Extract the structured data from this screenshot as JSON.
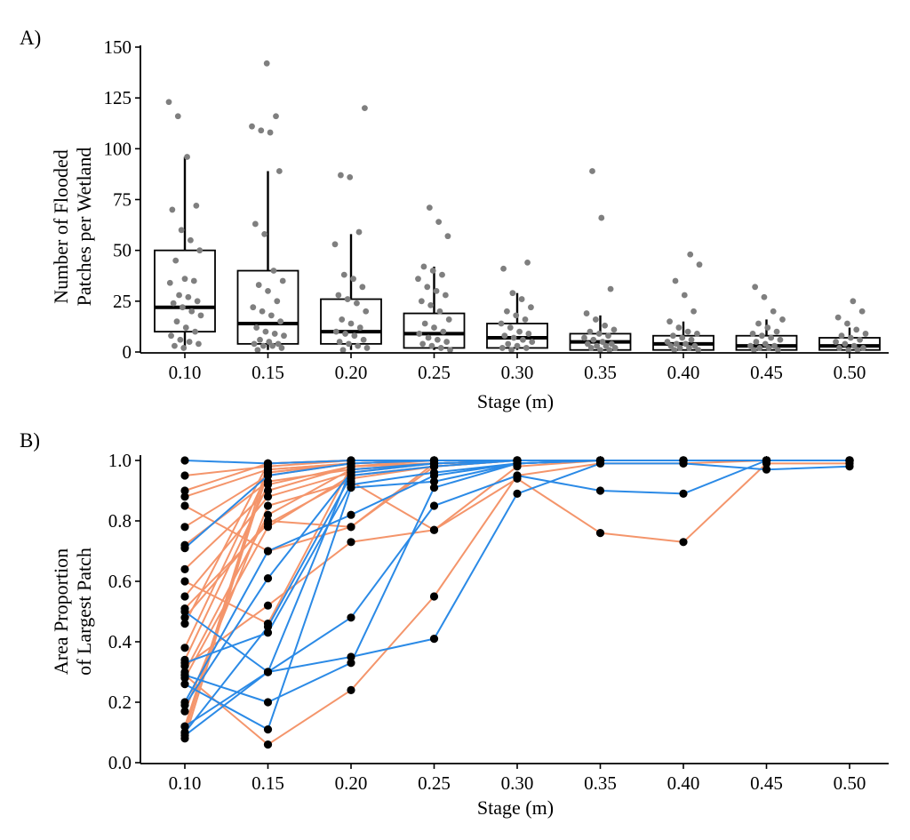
{
  "chart_data": [
    {
      "panel_label": "A)",
      "type": "box",
      "title": "",
      "xlabel": "Stage (m)",
      "ylabel_lines": [
        "Number of Flooded",
        "Patches per Wetland"
      ],
      "categories": [
        "0.10",
        "0.15",
        "0.20",
        "0.25",
        "0.30",
        "0.35",
        "0.40",
        "0.45",
        "0.50"
      ],
      "ylim": [
        0,
        150
      ],
      "yticks": [
        0,
        25,
        50,
        75,
        100,
        125,
        150
      ],
      "ytick_labels": [
        "0",
        "25",
        "50",
        "75",
        "100",
        "125",
        "150"
      ],
      "boxes": [
        {
          "q1": 10,
          "median": 22,
          "q3": 50,
          "whisker_low": 1,
          "whisker_high": 96
        },
        {
          "q1": 4,
          "median": 14,
          "q3": 40,
          "whisker_low": 1,
          "whisker_high": 89
        },
        {
          "q1": 4,
          "median": 10,
          "q3": 26,
          "whisker_low": 1,
          "whisker_high": 58
        },
        {
          "q1": 2,
          "median": 9,
          "q3": 19,
          "whisker_low": 1,
          "whisker_high": 42
        },
        {
          "q1": 2,
          "median": 7,
          "q3": 14,
          "whisker_low": 1,
          "whisker_high": 29
        },
        {
          "q1": 1,
          "median": 5,
          "q3": 9,
          "whisker_low": 1,
          "whisker_high": 18
        },
        {
          "q1": 1,
          "median": 4,
          "q3": 8,
          "whisker_low": 1,
          "whisker_high": 15
        },
        {
          "q1": 1,
          "median": 3,
          "q3": 8,
          "whisker_low": 1,
          "whisker_high": 16
        },
        {
          "q1": 1,
          "median": 3,
          "q3": 7,
          "whisker_low": 1,
          "whisker_high": 12
        }
      ],
      "points": [
        [
          123,
          116,
          96,
          72,
          70,
          60,
          55,
          50,
          45,
          36,
          35,
          34,
          28,
          27,
          25,
          24,
          22,
          20,
          18,
          15,
          12,
          10,
          8,
          6,
          5,
          4,
          3,
          2
        ],
        [
          142,
          116,
          111,
          109,
          108,
          89,
          63,
          58,
          40,
          35,
          33,
          30,
          25,
          22,
          20,
          18,
          15,
          12,
          10,
          9,
          8,
          6,
          5,
          4,
          4,
          3,
          3,
          2,
          1
        ],
        [
          120,
          87,
          86,
          59,
          53,
          38,
          36,
          32,
          28,
          26,
          24,
          20,
          16,
          14,
          12,
          10,
          9,
          8,
          6,
          5,
          4,
          3,
          2,
          1
        ],
        [
          71,
          64,
          57,
          42,
          40,
          38,
          36,
          32,
          30,
          28,
          25,
          23,
          20,
          16,
          14,
          12,
          10,
          9,
          7,
          6,
          5,
          4,
          3,
          2,
          1
        ],
        [
          44,
          41,
          29,
          26,
          22,
          20,
          18,
          16,
          14,
          12,
          10,
          9,
          8,
          7,
          6,
          5,
          4,
          3,
          2,
          2,
          1
        ],
        [
          89,
          66,
          31,
          19,
          16,
          13,
          11,
          10,
          9,
          8,
          7,
          6,
          5,
          4,
          4,
          3,
          3,
          2,
          2,
          1,
          1
        ],
        [
          48,
          43,
          35,
          28,
          20,
          15,
          12,
          10,
          9,
          8,
          7,
          6,
          5,
          4,
          4,
          3,
          3,
          2,
          2,
          1,
          1
        ],
        [
          32,
          27,
          20,
          16,
          14,
          12,
          10,
          9,
          8,
          7,
          6,
          5,
          4,
          3,
          3,
          2,
          2,
          1,
          1
        ],
        [
          25,
          20,
          17,
          14,
          11,
          9,
          8,
          7,
          6,
          5,
          4,
          3,
          2,
          2,
          1,
          1
        ]
      ]
    },
    {
      "panel_label": "B)",
      "type": "line",
      "title": "",
      "xlabel": "Stage (m)",
      "ylabel_lines": [
        "Area Proportion",
        "of Largest Patch"
      ],
      "categories": [
        "0.10",
        "0.15",
        "0.20",
        "0.25",
        "0.30",
        "0.35",
        "0.40",
        "0.45",
        "0.50"
      ],
      "ylim": [
        0,
        1
      ],
      "yticks": [
        0,
        0.2,
        0.4,
        0.6,
        0.8,
        1.0
      ],
      "ytick_labels": [
        "0.0",
        "0.2",
        "0.4",
        "0.6",
        "0.8",
        "1.0"
      ],
      "colors": {
        "orange": "#f4956b",
        "blue": "#2b8ae6",
        "point": "#000000"
      },
      "series": [
        {
          "color": "orange",
          "values": [
            0.29,
            0.06,
            0.24,
            0.55,
            0.95,
            0.99,
            0.99,
            1.0,
            1.0
          ]
        },
        {
          "color": "orange",
          "values": [
            0.32,
            0.52,
            0.73,
            0.77,
            0.94,
            0.76,
            0.73,
            0.99,
            0.99
          ]
        },
        {
          "color": "orange",
          "values": [
            0.6,
            0.46,
            0.98,
            0.99,
            1.0,
            1.0,
            1.0,
            1.0,
            1.0
          ]
        },
        {
          "color": "orange",
          "values": [
            0.85,
            0.7,
            0.78,
            0.99,
            1.0,
            1.0,
            1.0,
            1.0,
            1.0
          ]
        },
        {
          "color": "orange",
          "values": [
            0.12,
            0.96,
            0.99,
            1.0,
            1.0,
            1.0,
            1.0,
            1.0,
            1.0
          ]
        },
        {
          "color": "orange",
          "values": [
            0.9,
            0.99,
            1.0,
            1.0,
            1.0,
            1.0,
            1.0,
            1.0,
            1.0
          ]
        },
        {
          "color": "orange",
          "values": [
            0.95,
            0.98,
            1.0,
            1.0,
            1.0,
            1.0,
            1.0,
            1.0,
            1.0
          ]
        },
        {
          "color": "orange",
          "values": [
            0.88,
            0.97,
            0.99,
            1.0,
            1.0,
            1.0,
            1.0,
            1.0,
            1.0
          ]
        },
        {
          "color": "orange",
          "values": [
            0.78,
            0.95,
            0.99,
            1.0,
            1.0,
            1.0,
            1.0,
            1.0,
            1.0
          ]
        },
        {
          "color": "orange",
          "values": [
            0.72,
            0.93,
            0.97,
            0.99,
            1.0,
            1.0,
            1.0,
            1.0,
            1.0
          ]
        },
        {
          "color": "orange",
          "values": [
            0.64,
            0.9,
            0.98,
            1.0,
            1.0,
            1.0,
            1.0,
            1.0,
            1.0
          ]
        },
        {
          "color": "orange",
          "values": [
            0.55,
            0.88,
            0.96,
            0.99,
            1.0,
            1.0,
            1.0,
            1.0,
            1.0
          ]
        },
        {
          "color": "orange",
          "values": [
            0.51,
            0.79,
            0.94,
            0.98,
            1.0,
            1.0,
            1.0,
            1.0,
            1.0
          ]
        },
        {
          "color": "orange",
          "values": [
            0.48,
            0.8,
            0.78,
            0.98,
            1.0,
            1.0,
            1.0,
            1.0,
            1.0
          ]
        },
        {
          "color": "orange",
          "values": [
            0.46,
            0.99,
            1.0,
            1.0,
            1.0,
            1.0,
            1.0,
            1.0,
            1.0
          ]
        },
        {
          "color": "orange",
          "values": [
            0.38,
            0.96,
            0.99,
            1.0,
            1.0,
            1.0,
            1.0,
            1.0,
            1.0
          ]
        },
        {
          "color": "orange",
          "values": [
            0.34,
            0.92,
            0.98,
            0.99,
            1.0,
            1.0,
            1.0,
            1.0,
            1.0
          ]
        },
        {
          "color": "orange",
          "values": [
            0.3,
            0.82,
            0.97,
            0.99,
            1.0,
            1.0,
            1.0,
            1.0,
            1.0
          ]
        },
        {
          "color": "orange",
          "values": [
            0.28,
            0.78,
            0.95,
            0.98,
            1.0,
            1.0,
            1.0,
            1.0,
            1.0
          ]
        },
        {
          "color": "orange",
          "values": [
            0.08,
            0.97,
            0.99,
            1.0,
            1.0,
            1.0,
            1.0,
            1.0,
            1.0
          ]
        },
        {
          "color": "orange",
          "values": [
            0.1,
            0.99,
            1.0,
            1.0,
            1.0,
            1.0,
            1.0,
            1.0,
            1.0
          ]
        },
        {
          "color": "orange",
          "values": [
            0.17,
            0.85,
            0.93,
            0.77,
            0.98,
            1.0,
            1.0,
            1.0,
            1.0
          ]
        },
        {
          "color": "blue",
          "values": [
            0.09,
            0.3,
            0.35,
            0.41,
            0.89,
            0.99,
            0.99,
            0.97,
            0.98
          ]
        },
        {
          "color": "blue",
          "values": [
            0.12,
            0.3,
            0.48,
            0.85,
            0.95,
            0.9,
            0.89,
            1.0,
            1.0
          ]
        },
        {
          "color": "blue",
          "values": [
            0.29,
            0.2,
            0.33,
            0.91,
            0.99,
            1.0,
            1.0,
            1.0,
            1.0
          ]
        },
        {
          "color": "blue",
          "values": [
            0.5,
            0.3,
            0.97,
            0.99,
            1.0,
            1.0,
            1.0,
            1.0,
            1.0
          ]
        },
        {
          "color": "blue",
          "values": [
            0.26,
            0.11,
            0.91,
            0.93,
            0.99,
            1.0,
            1.0,
            1.0,
            1.0
          ]
        },
        {
          "color": "blue",
          "values": [
            0.19,
            0.61,
            0.96,
            0.99,
            1.0,
            1.0,
            1.0,
            1.0,
            1.0
          ]
        },
        {
          "color": "blue",
          "values": [
            0.71,
            0.95,
            0.99,
            1.0,
            1.0,
            1.0,
            1.0,
            1.0,
            1.0
          ]
        },
        {
          "color": "blue",
          "values": [
            1.0,
            0.99,
            1.0,
            1.0,
            1.0,
            1.0,
            1.0,
            1.0,
            1.0
          ]
        },
        {
          "color": "blue",
          "values": [
            0.33,
            0.43,
            0.92,
            0.96,
            0.99,
            1.0,
            1.0,
            1.0,
            1.0
          ]
        },
        {
          "color": "blue",
          "values": [
            0.1,
            0.45,
            0.95,
            0.98,
            1.0,
            1.0,
            1.0,
            1.0,
            1.0
          ]
        },
        {
          "color": "blue",
          "values": [
            0.2,
            0.7,
            0.82,
            0.95,
            0.99,
            1.0,
            1.0,
            1.0,
            1.0
          ]
        }
      ]
    }
  ]
}
